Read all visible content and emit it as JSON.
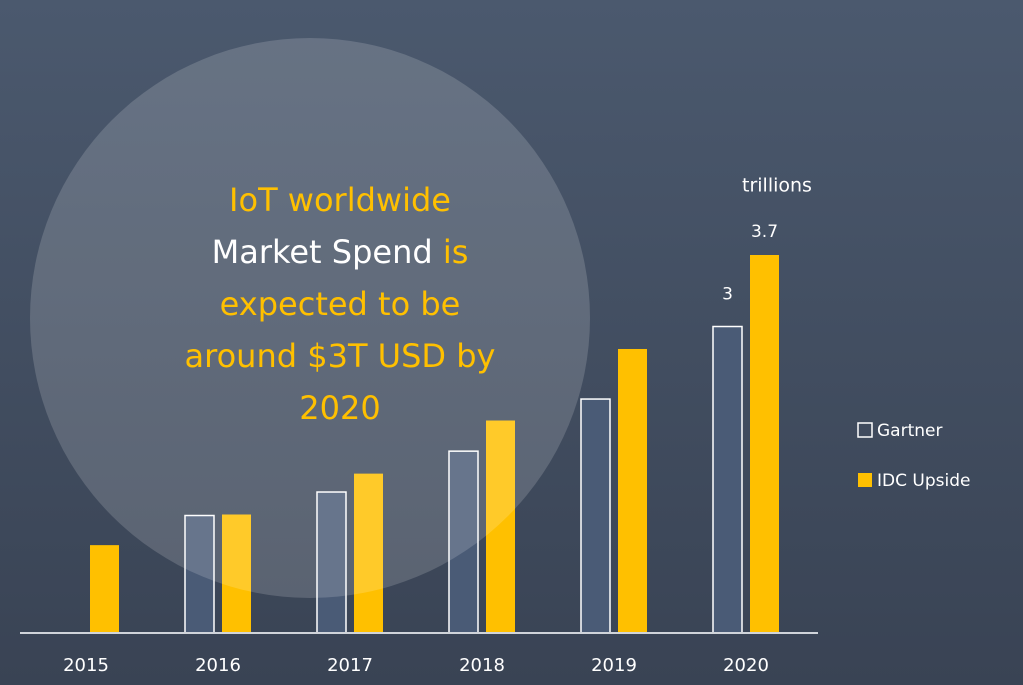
{
  "chart_data": {
    "type": "bar",
    "unit_label": "trillions",
    "categories": [
      "2015",
      "2016",
      "2017",
      "2018",
      "2019",
      "2020"
    ],
    "series": [
      {
        "name": "Gartner",
        "color": "#4a5b76",
        "values": [
          null,
          1.15,
          1.38,
          1.78,
          2.29,
          3
        ],
        "value_labels": [
          null,
          null,
          null,
          null,
          null,
          "3"
        ]
      },
      {
        "name": "IDC Upside",
        "color": "#ffc000",
        "values": [
          0.86,
          1.16,
          1.56,
          2.08,
          2.78,
          3.7
        ],
        "value_labels": [
          null,
          null,
          null,
          null,
          null,
          "3.7"
        ]
      }
    ],
    "annotation": {
      "lines": [
        [
          {
            "text": "IoT worldwide",
            "color": "#ffc000"
          }
        ],
        [
          {
            "text": "Market Spend",
            "color": "#ffffff"
          },
          {
            "text": " is",
            "color": "#ffc000"
          }
        ],
        [
          {
            "text": "expected to be",
            "color": "#ffc000"
          }
        ],
        [
          {
            "text": "around $3T USD by",
            "color": "#ffc000"
          }
        ],
        [
          {
            "text": "2020",
            "color": "#ffc000"
          }
        ]
      ]
    }
  }
}
